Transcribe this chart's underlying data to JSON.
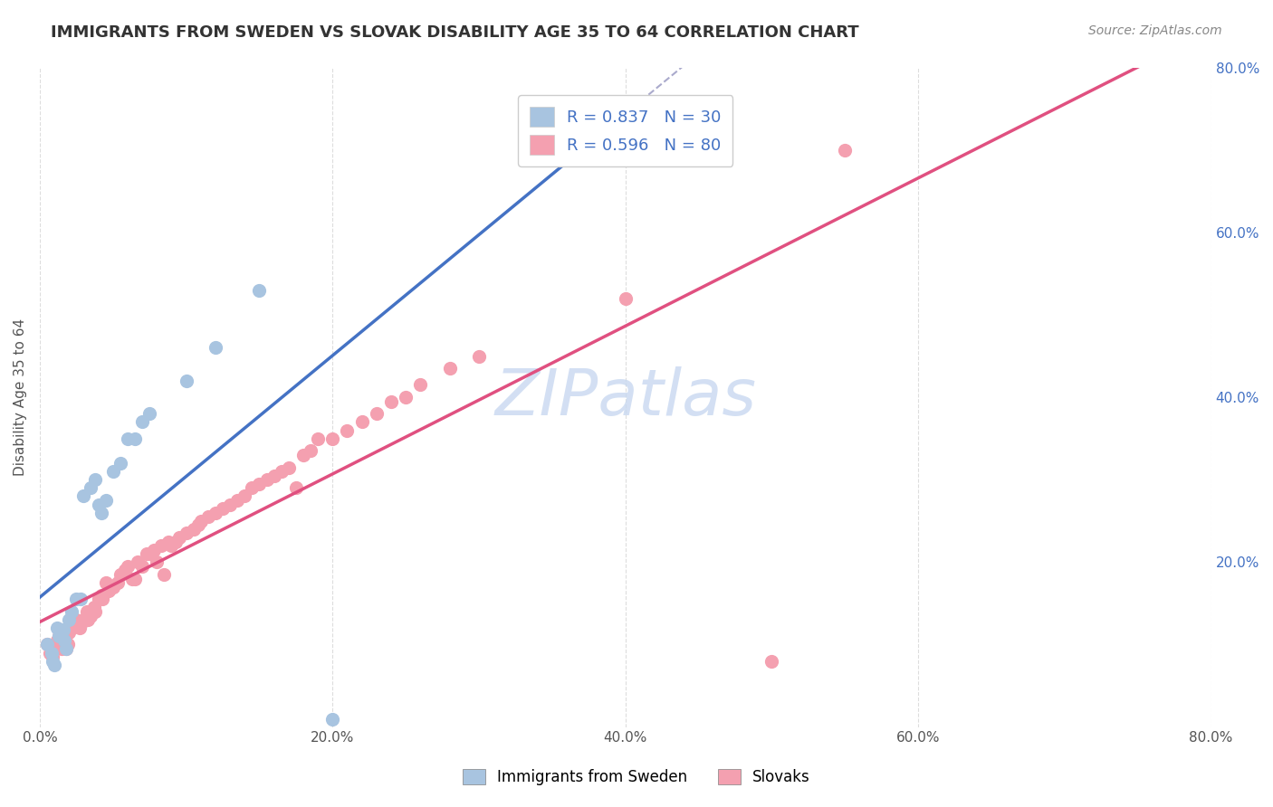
{
  "title": "IMMIGRANTS FROM SWEDEN VS SLOVAK DISABILITY AGE 35 TO 64 CORRELATION CHART",
  "source": "Source: ZipAtlas.com",
  "ylabel": "Disability Age 35 to 64",
  "xlim": [
    0.0,
    0.8
  ],
  "ylim": [
    0.0,
    0.8
  ],
  "xtick_labels": [
    "0.0%",
    "20.0%",
    "40.0%",
    "60.0%",
    "80.0%"
  ],
  "xtick_vals": [
    0.0,
    0.2,
    0.4,
    0.6,
    0.8
  ],
  "ytick_labels_right": [
    "20.0%",
    "40.0%",
    "60.0%",
    "80.0%"
  ],
  "ytick_vals_right": [
    0.2,
    0.4,
    0.6,
    0.8
  ],
  "sweden_R": 0.837,
  "sweden_N": 30,
  "slovak_R": 0.596,
  "slovak_N": 80,
  "sweden_color": "#a8c4e0",
  "slovak_color": "#f4a0b0",
  "sweden_line_color": "#4472c4",
  "slovak_line_color": "#e05080",
  "watermark_color": "#c8d8f0",
  "sweden_scatter_x": [
    0.005,
    0.008,
    0.009,
    0.01,
    0.012,
    0.013,
    0.015,
    0.016,
    0.017,
    0.018,
    0.02,
    0.022,
    0.025,
    0.028,
    0.03,
    0.035,
    0.038,
    0.04,
    0.042,
    0.045,
    0.05,
    0.055,
    0.06,
    0.065,
    0.07,
    0.075,
    0.1,
    0.12,
    0.15,
    0.2
  ],
  "sweden_scatter_y": [
    0.1,
    0.09,
    0.08,
    0.075,
    0.12,
    0.11,
    0.115,
    0.118,
    0.105,
    0.095,
    0.13,
    0.14,
    0.155,
    0.155,
    0.28,
    0.29,
    0.3,
    0.27,
    0.26,
    0.275,
    0.31,
    0.32,
    0.35,
    0.35,
    0.37,
    0.38,
    0.42,
    0.46,
    0.53,
    0.01
  ],
  "slovak_scatter_x": [
    0.005,
    0.007,
    0.009,
    0.01,
    0.012,
    0.013,
    0.014,
    0.015,
    0.016,
    0.017,
    0.018,
    0.019,
    0.02,
    0.022,
    0.023,
    0.025,
    0.027,
    0.028,
    0.03,
    0.032,
    0.033,
    0.035,
    0.037,
    0.038,
    0.04,
    0.042,
    0.043,
    0.045,
    0.047,
    0.05,
    0.053,
    0.055,
    0.058,
    0.06,
    0.063,
    0.065,
    0.067,
    0.07,
    0.073,
    0.075,
    0.078,
    0.08,
    0.083,
    0.085,
    0.088,
    0.09,
    0.093,
    0.095,
    0.1,
    0.105,
    0.108,
    0.11,
    0.115,
    0.12,
    0.125,
    0.13,
    0.135,
    0.14,
    0.145,
    0.15,
    0.155,
    0.16,
    0.165,
    0.17,
    0.175,
    0.18,
    0.185,
    0.19,
    0.2,
    0.21,
    0.22,
    0.23,
    0.24,
    0.25,
    0.26,
    0.28,
    0.3,
    0.4,
    0.5,
    0.55
  ],
  "slovak_scatter_y": [
    0.1,
    0.09,
    0.085,
    0.095,
    0.105,
    0.11,
    0.1,
    0.095,
    0.115,
    0.105,
    0.095,
    0.1,
    0.115,
    0.12,
    0.125,
    0.13,
    0.12,
    0.125,
    0.13,
    0.14,
    0.13,
    0.135,
    0.145,
    0.14,
    0.155,
    0.16,
    0.155,
    0.175,
    0.165,
    0.17,
    0.175,
    0.185,
    0.19,
    0.195,
    0.18,
    0.18,
    0.2,
    0.195,
    0.21,
    0.21,
    0.215,
    0.2,
    0.22,
    0.185,
    0.225,
    0.22,
    0.225,
    0.23,
    0.235,
    0.24,
    0.245,
    0.25,
    0.255,
    0.26,
    0.265,
    0.27,
    0.275,
    0.28,
    0.29,
    0.295,
    0.3,
    0.305,
    0.31,
    0.315,
    0.29,
    0.33,
    0.335,
    0.35,
    0.35,
    0.36,
    0.37,
    0.38,
    0.395,
    0.4,
    0.415,
    0.435,
    0.45,
    0.52,
    0.08,
    0.7
  ]
}
